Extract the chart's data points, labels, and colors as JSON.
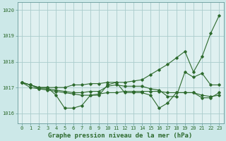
{
  "background_color": "#cce8e8",
  "plot_bg_color": "#dff0f0",
  "grid_color": "#aacccc",
  "line_color": "#2d6a2d",
  "spine_color": "#669999",
  "title": "Graphe pression niveau de la mer (hPa)",
  "title_fontsize": 6.5,
  "tick_fontsize": 5.0,
  "ylabel_ticks": [
    1016,
    1017,
    1018,
    1019,
    1020
  ],
  "xlim": [
    -0.5,
    23.5
  ],
  "ylim": [
    1015.6,
    1020.3
  ],
  "x": [
    0,
    1,
    2,
    3,
    4,
    5,
    6,
    7,
    8,
    9,
    10,
    11,
    12,
    13,
    14,
    15,
    16,
    17,
    18,
    19,
    20,
    21,
    22,
    23
  ],
  "series1": [
    1017.2,
    1017.1,
    1017.0,
    1017.0,
    1016.7,
    1016.2,
    1016.2,
    1016.3,
    1016.7,
    1016.7,
    1017.1,
    1017.2,
    1016.8,
    1016.8,
    1016.8,
    1016.7,
    1016.2,
    1016.4,
    1016.8,
    1016.8,
    1016.8,
    1016.6,
    1016.6,
    1016.8
  ],
  "series2": [
    1017.2,
    1017.1,
    1017.0,
    1017.0,
    1017.0,
    1017.0,
    1017.1,
    1017.1,
    1017.15,
    1017.15,
    1017.2,
    1017.2,
    1017.2,
    1017.25,
    1017.3,
    1017.5,
    1017.7,
    1017.9,
    1018.15,
    1018.4,
    1017.6,
    1018.2,
    1019.1,
    1019.8
  ],
  "series3": [
    1017.2,
    1017.1,
    1016.95,
    1016.95,
    1016.9,
    1016.85,
    1016.8,
    1016.8,
    1016.85,
    1016.85,
    1017.05,
    1017.1,
    1017.05,
    1017.05,
    1017.05,
    1016.95,
    1016.9,
    1016.65,
    1016.65,
    1017.6,
    1017.4,
    1017.55,
    1017.1,
    1017.1
  ],
  "series4": [
    1017.2,
    1017.0,
    1016.95,
    1016.9,
    1016.85,
    1016.8,
    1016.75,
    1016.7,
    1016.7,
    1016.75,
    1016.8,
    1016.8,
    1016.85,
    1016.85,
    1016.85,
    1016.85,
    1016.85,
    1016.8,
    1016.8,
    1016.8,
    1016.8,
    1016.7,
    1016.65,
    1016.7
  ]
}
